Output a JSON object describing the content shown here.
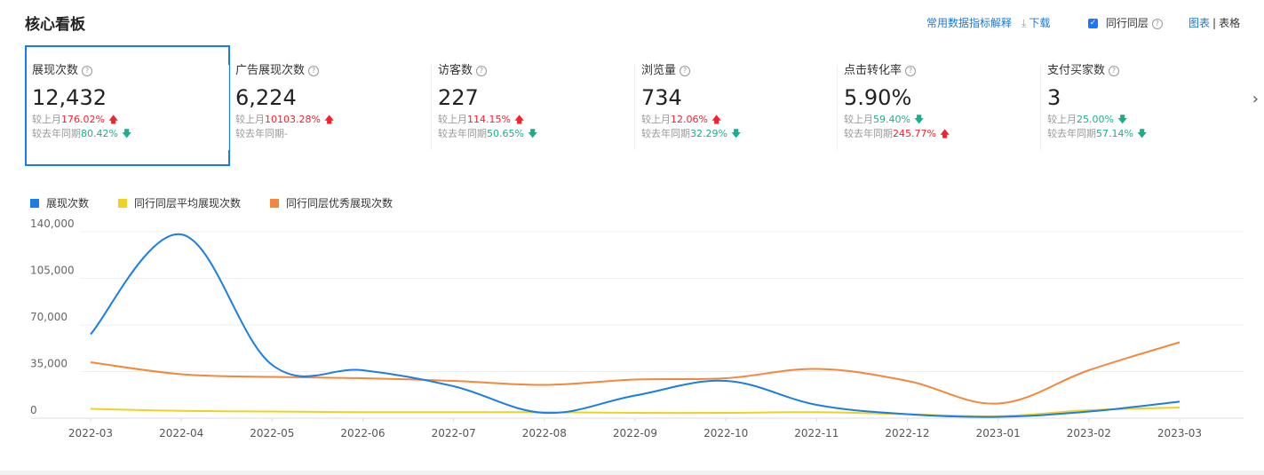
{
  "header": {
    "title": "核心看板",
    "metric_explain": "常用数据指标解释",
    "download": "下载",
    "peer_label": "同行同层",
    "view_chart": "图表",
    "view_sep": "|",
    "view_table": "表格"
  },
  "colors": {
    "accent": "#1677ff",
    "up": "#f5222d",
    "down": "#1aae8f"
  },
  "metrics": [
    {
      "label": "展现次数",
      "has_help": true,
      "value": "12,432",
      "mom_prefix": "较上月",
      "mom": "176.02%",
      "mom_dir": "up",
      "yoy_prefix": "较去年同期",
      "yoy": "80.42%",
      "yoy_dir": "down"
    },
    {
      "label": "广告展现次数",
      "has_help": true,
      "value": "6,224",
      "mom_prefix": "较上月",
      "mom": "10103.28%",
      "mom_dir": "up",
      "yoy_prefix": "较去年同期",
      "yoy": "-",
      "yoy_dir": "none"
    },
    {
      "label": "访客数",
      "has_help": true,
      "value": "227",
      "mom_prefix": "较上月",
      "mom": "114.15%",
      "mom_dir": "up",
      "yoy_prefix": "较去年同期",
      "yoy": "50.65%",
      "yoy_dir": "down"
    },
    {
      "label": "浏览量",
      "has_help": true,
      "value": "734",
      "mom_prefix": "较上月",
      "mom": "12.06%",
      "mom_dir": "up",
      "yoy_prefix": "较去年同期",
      "yoy": "32.29%",
      "yoy_dir": "down"
    },
    {
      "label": "点击转化率",
      "has_help": true,
      "value": "5.90%",
      "mom_prefix": "较上月",
      "mom": "59.40%",
      "mom_dir": "down",
      "yoy_prefix": "较去年同期",
      "yoy": "245.77%",
      "yoy_dir": "up"
    },
    {
      "label": "支付买家数",
      "has_help": true,
      "value": "3",
      "mom_prefix": "较上月",
      "mom": "25.00%",
      "mom_dir": "down",
      "yoy_prefix": "较去年同期",
      "yoy": "57.14%",
      "yoy_dir": "down"
    }
  ],
  "chart_data": {
    "type": "line",
    "title": "",
    "xlabel": "",
    "ylabel": "",
    "categories": [
      "2022-03",
      "2022-04",
      "2022-05",
      "2022-06",
      "2022-07",
      "2022-08",
      "2022-09",
      "2022-10",
      "2022-11",
      "2022-12",
      "2023-01",
      "2023-02",
      "2023-03"
    ],
    "y_ticks": [
      0,
      35000,
      70000,
      105000,
      140000
    ],
    "y_tick_labels": [
      "0",
      "35,000",
      "70,000",
      "105,000",
      "140,000"
    ],
    "ylim": [
      0,
      140000
    ],
    "legend_position": "top-left",
    "series": [
      {
        "name": "展现次数",
        "color": "#1a7ee6",
        "values": [
          63000,
          138000,
          40000,
          36000,
          24000,
          4000,
          17000,
          28000,
          10000,
          3000,
          1000,
          5000,
          12432
        ]
      },
      {
        "name": "同行同层平均展现次数",
        "color": "#f0d020",
        "values": [
          7000,
          5500,
          5000,
          4500,
          4500,
          4500,
          4000,
          4000,
          4500,
          3000,
          1500,
          6000,
          8000
        ]
      },
      {
        "name": "同行同层优秀展现次数",
        "color": "#f5873b",
        "values": [
          42000,
          33000,
          31000,
          30000,
          28000,
          25000,
          29000,
          30000,
          37000,
          28000,
          11000,
          36000,
          57000
        ]
      }
    ]
  }
}
